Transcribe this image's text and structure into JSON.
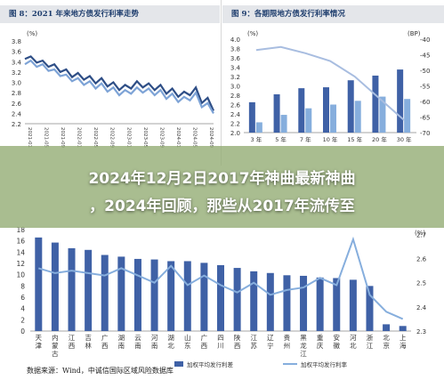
{
  "fig8": {
    "title": "图 8：2021 年来地方债发行利率走势",
    "chart_data": {
      "type": "line",
      "ylabel": "(%)",
      "ylim": [
        2.2,
        3.8
      ],
      "yticks": [
        2.2,
        2.4,
        2.6,
        2.8,
        3.0,
        3.2,
        3.4,
        3.6,
        3.8
      ],
      "xticks": [
        "2021-01",
        "2021-05",
        "2021-09",
        "2022-01",
        "2022-05",
        "2022-09",
        "2023-01",
        "2023-05",
        "2023-09",
        "2024-01",
        "2024-05",
        "2024-09"
      ],
      "series": [
        {
          "color": "#2e4e86",
          "values": [
            3.45,
            3.5,
            3.38,
            3.42,
            3.3,
            3.35,
            3.2,
            3.25,
            3.1,
            3.18,
            3.05,
            3.12,
            2.98,
            3.08,
            2.92,
            3.0,
            2.85,
            2.95,
            2.88,
            3.02,
            2.9,
            2.98,
            2.85,
            2.95,
            2.78,
            2.88,
            2.72,
            2.82,
            2.75,
            2.9,
            2.6,
            2.7,
            2.45
          ]
        },
        {
          "color": "#7da3d6",
          "values": [
            3.35,
            3.42,
            3.3,
            3.35,
            3.22,
            3.25,
            3.12,
            3.15,
            3.02,
            3.08,
            2.95,
            3.02,
            2.88,
            2.98,
            2.82,
            2.9,
            2.75,
            2.85,
            2.78,
            2.9,
            2.8,
            2.88,
            2.75,
            2.85,
            2.68,
            2.78,
            2.62,
            2.72,
            2.65,
            2.8,
            2.52,
            2.6,
            2.4
          ]
        }
      ]
    }
  },
  "fig9": {
    "title": "图 9：各期限地方债发行利率情况",
    "chart_data": {
      "type": "bar",
      "ylabel_left": "(%)",
      "ylabel_right": "(BP)",
      "ylim": [
        2.0,
        4.0
      ],
      "yticks": [
        2.0,
        2.2,
        2.4,
        2.6,
        2.8,
        3.0,
        3.2,
        3.4,
        3.6,
        3.8,
        4.0
      ],
      "ylim_right": [
        -70,
        -40
      ],
      "yticks_right": [
        -70,
        -65,
        -60,
        -55,
        -50,
        -45,
        -40
      ],
      "categories": [
        "3 年",
        "5 年",
        "7 年",
        "10 年",
        "15 年",
        "20 年",
        "30 年"
      ],
      "series": [
        {
          "type": "bar",
          "color": "#3f61a6",
          "values": [
            2.65,
            2.82,
            2.95,
            2.97,
            3.12,
            3.22,
            3.35
          ]
        },
        {
          "type": "bar",
          "color": "#86aedd",
          "values": [
            2.22,
            2.38,
            2.52,
            2.6,
            2.68,
            2.77,
            2.72
          ]
        },
        {
          "type": "line",
          "axis": "right",
          "color": "#a8bde0",
          "values": [
            -43.5,
            -42.5,
            -44.5,
            -47,
            -52,
            -59,
            -66
          ]
        }
      ]
    }
  },
  "headline": {
    "line1": "2024年12月2日2017年神曲最新神曲",
    "line2": "，2024年回顾，那些从2017年流传至"
  },
  "fig_bottom": {
    "chart_data": {
      "type": "bar",
      "ylabel_right": "(%)",
      "ylim": [
        0,
        18
      ],
      "yticks": [
        0,
        2,
        4,
        6,
        8,
        10,
        12,
        14,
        16,
        18
      ],
      "yticks_right": [
        2.3,
        2.4,
        2.5,
        2.6,
        2.7
      ],
      "categories": [
        "天津",
        "内蒙古",
        "江西",
        "吉林",
        "广西",
        "湖南",
        "云南",
        "河南",
        "湖北",
        "山东",
        "广西",
        "四川",
        "陕西",
        "江苏",
        "辽宁",
        "贵州",
        "黑龙江",
        "重庆",
        "安徽",
        "河北",
        "浙江",
        "北京",
        "上海"
      ],
      "series": [
        {
          "name": "加权平均发行利差",
          "type": "bar",
          "color": "#3f61a6",
          "values": [
            16.6,
            15.7,
            14.7,
            14.4,
            13.5,
            13.2,
            12.8,
            12.7,
            12.4,
            12.4,
            12.1,
            11.7,
            11.2,
            10.6,
            10.3,
            9.9,
            9.8,
            9.5,
            9.4,
            9.1,
            8.0,
            1.2,
            0.9
          ]
        },
        {
          "name": "加权平均发行利率",
          "type": "line",
          "axis": "right",
          "color": "#86aedd",
          "values": [
            2.56,
            2.54,
            2.55,
            2.54,
            2.53,
            2.56,
            2.53,
            2.5,
            2.57,
            2.49,
            2.53,
            2.49,
            2.46,
            2.5,
            2.45,
            2.47,
            2.48,
            2.52,
            2.49,
            2.68,
            2.45,
            2.38,
            2.35
          ]
        }
      ]
    }
  },
  "sources": {
    "left": "数据来源：Wind，中诚信国际区域风险数据库",
    "right": "数据来源：Wind，中诚信国际区域风险数据库",
    "bottom": "数据来源：Wind，中诚信国际区域风险数据库"
  },
  "colors": {
    "panel_title_bg": "#e4e6ea",
    "title_text": "#1f3e6e",
    "overlay": "#96af78"
  }
}
